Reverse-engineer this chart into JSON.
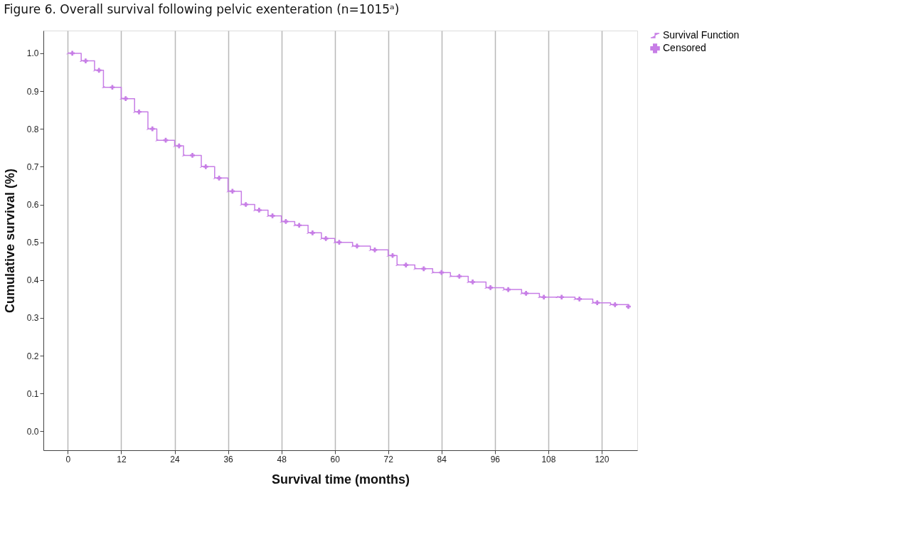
{
  "chart_data": {
    "type": "step",
    "title": "Figure 6. Overall survival following pelvic exenteration (n=1015ᵃ)",
    "xlabel": "Survival time (months)",
    "ylabel": "Cumulative survival (%)",
    "xlim": [
      -5.5,
      128
    ],
    "xticks": [
      0,
      12,
      24,
      36,
      48,
      60,
      72,
      84,
      96,
      108,
      120
    ],
    "ylim": [
      -0.05,
      1.06
    ],
    "yticks": [
      {
        "value": 0,
        "label": "0.0"
      },
      0.1,
      0.2,
      0.3,
      0.4,
      0.5,
      0.6,
      0.7,
      0.8,
      0.9,
      {
        "value": 1,
        "label": "1.0"
      }
    ],
    "grid": "x",
    "legend": "top right",
    "series": [
      {
        "name": "Survival Function",
        "color": "#c77ee6",
        "line_style": "solid",
        "x": [
          0,
          3,
          6,
          8,
          12,
          15,
          18,
          20,
          24,
          26,
          30,
          33,
          36,
          39,
          42,
          45,
          48,
          51,
          54,
          57,
          60,
          64,
          68,
          72,
          74,
          78,
          82,
          86,
          90,
          94,
          98,
          102,
          106,
          110,
          114,
          118,
          122,
          126
        ],
        "values": [
          1.0,
          0.98,
          0.955,
          0.91,
          0.88,
          0.845,
          0.8,
          0.77,
          0.755,
          0.73,
          0.7,
          0.67,
          0.635,
          0.6,
          0.585,
          0.57,
          0.555,
          0.545,
          0.525,
          0.51,
          0.5,
          0.49,
          0.48,
          0.465,
          0.44,
          0.43,
          0.42,
          0.41,
          0.395,
          0.38,
          0.375,
          0.365,
          0.355,
          0.355,
          0.35,
          0.34,
          0.335,
          0.33
        ]
      },
      {
        "name": "Censored",
        "type": "scatter",
        "marker": "cross",
        "color": "#c77ee6",
        "x": [
          1,
          4,
          7,
          10,
          13,
          16,
          19,
          22,
          25,
          28,
          31,
          34,
          37,
          40,
          43,
          46,
          49,
          52,
          55,
          58,
          61,
          65,
          69,
          73,
          76,
          80,
          84,
          88,
          91,
          95,
          99,
          103,
          107,
          111,
          115,
          119,
          123,
          126
        ],
        "values": [
          1.0,
          0.98,
          0.955,
          0.91,
          0.88,
          0.845,
          0.8,
          0.77,
          0.755,
          0.73,
          0.7,
          0.67,
          0.635,
          0.6,
          0.585,
          0.57,
          0.555,
          0.545,
          0.525,
          0.51,
          0.5,
          0.49,
          0.48,
          0.465,
          0.44,
          0.43,
          0.42,
          0.41,
          0.395,
          0.38,
          0.375,
          0.365,
          0.355,
          0.355,
          0.35,
          0.34,
          0.335,
          0.33
        ]
      }
    ]
  }
}
